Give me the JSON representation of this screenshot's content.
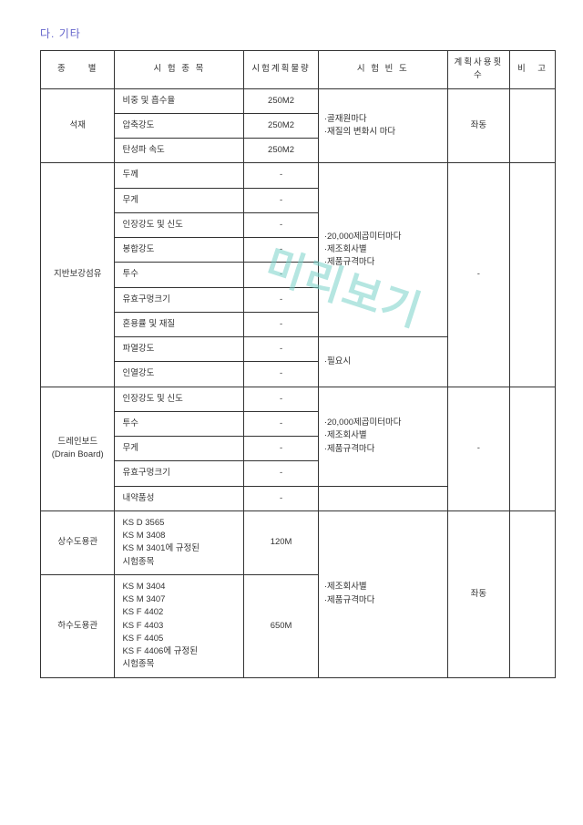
{
  "title": "다. 기타",
  "watermark": "미리보기",
  "headers": {
    "category": "종　　별",
    "item": "시 험 종 목",
    "qty": "시험계획물량",
    "freq": "시 험 빈 도",
    "plan": "계획사용횟수",
    "note": "비　고"
  },
  "groups": [
    {
      "category": "석재",
      "plan": "좌동",
      "note": "",
      "rows": [
        {
          "item": "비중 및 흡수율",
          "qty": "250M2",
          "freq": "·골재원마다\n·재질의 변화시 마다",
          "freq_span": 3
        },
        {
          "item": "압축강도",
          "qty": "250M2"
        },
        {
          "item": "탄성파 속도",
          "qty": "250M2"
        }
      ]
    },
    {
      "category": "지반보강섬유",
      "plan": "-",
      "note": "",
      "rows": [
        {
          "item": "두께",
          "qty": "-",
          "freq": "·20,000제곱미터마다\n·제조회사별\n·제품규격마다",
          "freq_span": 7
        },
        {
          "item": "무게",
          "qty": "-"
        },
        {
          "item": "인장강도 및 신도",
          "qty": "-"
        },
        {
          "item": "봉합강도",
          "qty": "-"
        },
        {
          "item": "투수",
          "qty": "-"
        },
        {
          "item": "유효구멍크기",
          "qty": "-"
        },
        {
          "item": "혼용률 및 재질",
          "qty": "-"
        },
        {
          "item": "파열강도",
          "qty": "-",
          "freq": "·필요시",
          "freq_span": 2
        },
        {
          "item": "인열강도",
          "qty": "-"
        }
      ]
    },
    {
      "category": "드레인보드\n(Drain Board)",
      "plan": "-",
      "note": "",
      "rows": [
        {
          "item": "인장강도 및 신도",
          "qty": "-",
          "freq": "·20,000제곱미터마다\n·제조회사별\n·제품규격마다",
          "freq_span": 4
        },
        {
          "item": "투수",
          "qty": "-"
        },
        {
          "item": "무게",
          "qty": "-"
        },
        {
          "item": "유효구멍크기",
          "qty": "-"
        },
        {
          "item": "내약품성",
          "qty": "-",
          "freq": "",
          "freq_span": 1
        }
      ]
    }
  ],
  "pipe": {
    "plan": "좌동",
    "note": "",
    "freq": "·제조회사별\n·제품규격마다",
    "rows": [
      {
        "category": "상수도용관",
        "item": "KS D 3565\nKS M 3408\nKS M 3401에 규정된\n시험종목",
        "qty": "120M"
      },
      {
        "category": "하수도용관",
        "item": "KS M 3404\nKS M 3407\nKS F 4402\nKS F 4403\nKS F 4405\nKS F 4406에 규정된\n시험종목",
        "qty": "650M"
      }
    ]
  },
  "colors": {
    "title": "#6666cc",
    "border": "#333333",
    "watermark": "rgba(120,210,200,0.55)"
  }
}
